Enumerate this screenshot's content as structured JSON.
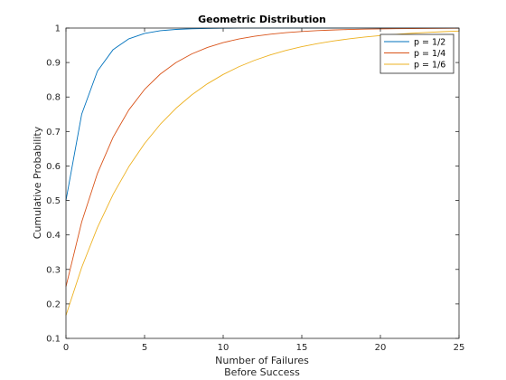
{
  "chart_data": {
    "type": "line",
    "title": "Geometric Distribution",
    "xlabel": [
      "Number of Failures",
      "Before Success"
    ],
    "ylabel": "Cumulative Probability",
    "xlim": [
      0,
      25
    ],
    "ylim": [
      0.1,
      1
    ],
    "xticks": [
      0,
      5,
      10,
      15,
      20,
      25
    ],
    "yticks": [
      0.1,
      0.2,
      0.3,
      0.4,
      0.5,
      0.6,
      0.7,
      0.8,
      0.9,
      1
    ],
    "grid": false,
    "legend_position": "top-right",
    "x": [
      0,
      1,
      2,
      3,
      4,
      5,
      6,
      7,
      8,
      9,
      10,
      11,
      12,
      13,
      14,
      15,
      16,
      17,
      18,
      19,
      20,
      21,
      22,
      23,
      24,
      25
    ],
    "series": [
      {
        "name": "p = 1/2",
        "color": "#0072BD",
        "values": [
          0.5,
          0.75,
          0.875,
          0.9375,
          0.9688,
          0.9844,
          0.9922,
          0.9961,
          0.998,
          0.999,
          0.9995,
          0.9998,
          0.9999,
          0.9999,
          1,
          1,
          1,
          1,
          1,
          1,
          1,
          1,
          1,
          1,
          1,
          1
        ]
      },
      {
        "name": "p = 1/4",
        "color": "#D95319",
        "values": [
          0.25,
          0.4375,
          0.5781,
          0.6836,
          0.7627,
          0.822,
          0.8665,
          0.8999,
          0.9249,
          0.9437,
          0.9578,
          0.9683,
          0.9762,
          0.9822,
          0.9866,
          0.99,
          0.9925,
          0.9944,
          0.9958,
          0.9968,
          0.9976,
          0.9982,
          0.9987,
          0.999,
          0.9992,
          0.9994
        ]
      },
      {
        "name": "p = 1/6",
        "color": "#EDB120",
        "values": [
          0.1667,
          0.3056,
          0.4213,
          0.5177,
          0.5981,
          0.6651,
          0.7209,
          0.7674,
          0.8062,
          0.8385,
          0.8654,
          0.8878,
          0.9065,
          0.9221,
          0.9351,
          0.9459,
          0.9549,
          0.9624,
          0.9687,
          0.9739,
          0.9783,
          0.9819,
          0.9849,
          0.9874,
          0.9895,
          0.9913
        ]
      }
    ]
  }
}
